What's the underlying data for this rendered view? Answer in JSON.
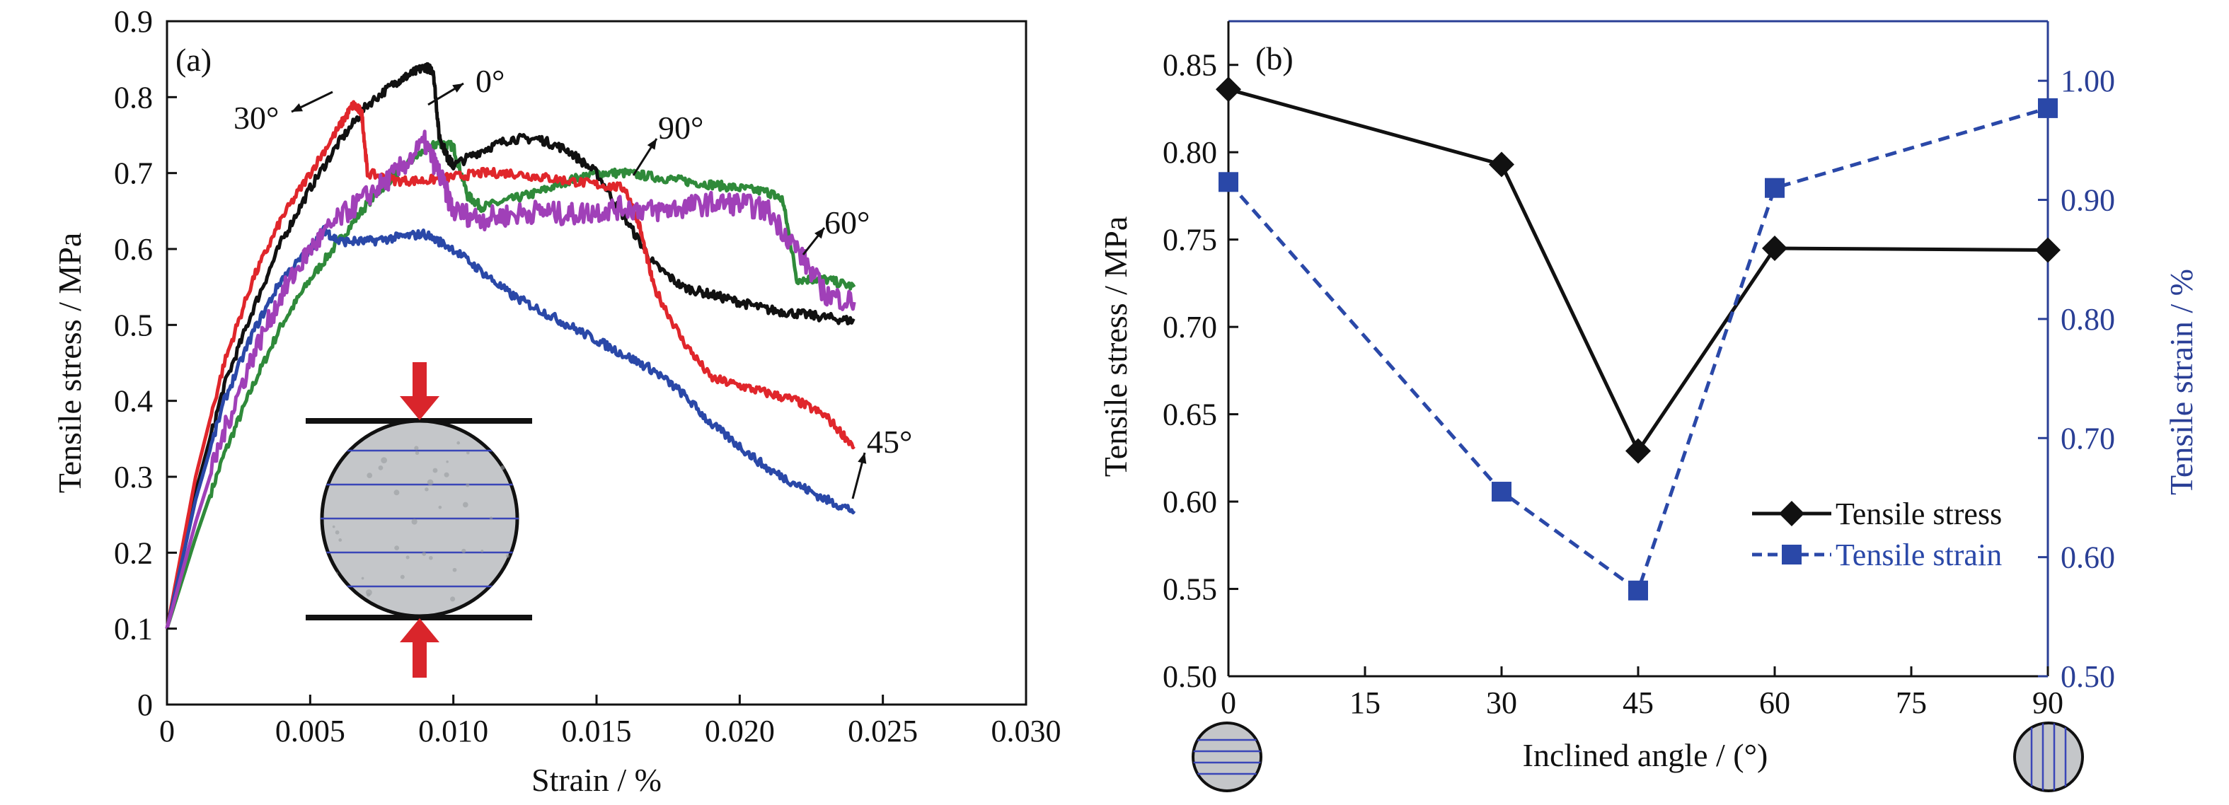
{
  "chart_data": [
    {
      "panel": "(a)",
      "type": "line",
      "xlabel": "Strain / %",
      "ylabel": "Tensile stress / MPa",
      "xlim": [
        0,
        0.03
      ],
      "ylim": [
        0,
        0.9
      ],
      "xticks": [
        "0",
        "0.005",
        "0.010",
        "0.015",
        "0.020",
        "0.025",
        "0.030"
      ],
      "xtick_values": [
        0,
        0.005,
        0.01,
        0.015,
        0.02,
        0.025,
        0.03
      ],
      "yticks": [
        "0",
        "0.1",
        "0.2",
        "0.3",
        "0.4",
        "0.5",
        "0.6",
        "0.7",
        "0.8",
        "0.9"
      ],
      "ytick_values": [
        0,
        0.1,
        0.2,
        0.3,
        0.4,
        0.5,
        0.6,
        0.7,
        0.8,
        0.9
      ],
      "grid": false,
      "series": [
        {
          "name": "0°",
          "color": "#111111",
          "x": [
            0,
            0.001,
            0.002,
            0.003,
            0.004,
            0.005,
            0.006,
            0.007,
            0.008,
            0.0085,
            0.009,
            0.0093,
            0.0095,
            0.0098,
            0.01,
            0.011,
            0.012,
            0.013,
            0.014,
            0.015,
            0.016,
            0.017,
            0.018,
            0.019,
            0.02,
            0.021,
            0.022,
            0.023,
            0.024
          ],
          "y": [
            0.1,
            0.28,
            0.42,
            0.52,
            0.61,
            0.68,
            0.74,
            0.79,
            0.82,
            0.83,
            0.84,
            0.835,
            0.75,
            0.72,
            0.71,
            0.73,
            0.745,
            0.745,
            0.73,
            0.7,
            0.64,
            0.58,
            0.55,
            0.54,
            0.53,
            0.52,
            0.515,
            0.51,
            0.505
          ]
        },
        {
          "name": "30°",
          "color": "#e0262b",
          "x": [
            0,
            0.001,
            0.002,
            0.003,
            0.004,
            0.005,
            0.006,
            0.0065,
            0.0068,
            0.007,
            0.008,
            0.009,
            0.01,
            0.011,
            0.012,
            0.013,
            0.014,
            0.015,
            0.016,
            0.0165,
            0.017,
            0.018,
            0.019,
            0.02,
            0.021,
            0.022,
            0.023,
            0.024
          ],
          "y": [
            0.1,
            0.3,
            0.45,
            0.56,
            0.64,
            0.7,
            0.76,
            0.79,
            0.78,
            0.7,
            0.69,
            0.69,
            0.695,
            0.7,
            0.7,
            0.695,
            0.69,
            0.685,
            0.68,
            0.63,
            0.55,
            0.48,
            0.43,
            0.42,
            0.41,
            0.4,
            0.38,
            0.34
          ]
        },
        {
          "name": "45°",
          "color": "#2a48a8",
          "x": [
            0,
            0.001,
            0.002,
            0.003,
            0.004,
            0.005,
            0.0055,
            0.006,
            0.007,
            0.008,
            0.009,
            0.01,
            0.011,
            0.012,
            0.013,
            0.014,
            0.015,
            0.016,
            0.017,
            0.018,
            0.019,
            0.02,
            0.021,
            0.022,
            0.023,
            0.024
          ],
          "y": [
            0.1,
            0.27,
            0.4,
            0.49,
            0.56,
            0.6,
            0.625,
            0.61,
            0.61,
            0.615,
            0.62,
            0.6,
            0.57,
            0.54,
            0.52,
            0.5,
            0.48,
            0.46,
            0.44,
            0.41,
            0.37,
            0.34,
            0.31,
            0.29,
            0.27,
            0.255
          ]
        },
        {
          "name": "60°",
          "color": "#2f8a3a",
          "x": [
            0,
            0.001,
            0.002,
            0.003,
            0.004,
            0.005,
            0.006,
            0.007,
            0.008,
            0.009,
            0.0095,
            0.01,
            0.0105,
            0.011,
            0.012,
            0.013,
            0.014,
            0.015,
            0.016,
            0.017,
            0.018,
            0.019,
            0.02,
            0.021,
            0.0215,
            0.022,
            0.023,
            0.024
          ],
          "y": [
            0.1,
            0.22,
            0.33,
            0.42,
            0.5,
            0.56,
            0.61,
            0.66,
            0.7,
            0.73,
            0.74,
            0.735,
            0.67,
            0.655,
            0.665,
            0.675,
            0.69,
            0.7,
            0.7,
            0.695,
            0.69,
            0.685,
            0.68,
            0.675,
            0.665,
            0.56,
            0.56,
            0.55
          ]
        },
        {
          "name": "90°",
          "color": "#a040b8",
          "x": [
            0,
            0.001,
            0.002,
            0.003,
            0.004,
            0.005,
            0.006,
            0.007,
            0.008,
            0.009,
            0.0095,
            0.01,
            0.011,
            0.012,
            0.013,
            0.014,
            0.015,
            0.016,
            0.017,
            0.018,
            0.019,
            0.02,
            0.021,
            0.022,
            0.023,
            0.024
          ],
          "y": [
            0.1,
            0.24,
            0.36,
            0.46,
            0.54,
            0.6,
            0.64,
            0.67,
            0.7,
            0.74,
            0.7,
            0.65,
            0.64,
            0.645,
            0.65,
            0.645,
            0.65,
            0.655,
            0.65,
            0.655,
            0.66,
            0.66,
            0.65,
            0.6,
            0.54,
            0.53
          ]
        }
      ],
      "annotations": [
        {
          "text": "0°",
          "series": "0°"
        },
        {
          "text": "30°",
          "series": "30°"
        },
        {
          "text": "90°",
          "series": "90°"
        },
        {
          "text": "60°",
          "series": "60°"
        },
        {
          "text": "45°",
          "series": "45°"
        }
      ]
    },
    {
      "panel": "(b)",
      "type": "line",
      "xlabel": "Inclined angle / (°)",
      "ylabel": "Tensile stress / MPa",
      "y2label": "Tensile strain / %",
      "x": [
        0,
        30,
        45,
        60,
        90
      ],
      "xlim": [
        0,
        90
      ],
      "ylim": [
        0.5,
        0.875
      ],
      "y2lim": [
        0.5,
        1.05
      ],
      "xticks": [
        "0",
        "15",
        "30",
        "45",
        "60",
        "75",
        "90"
      ],
      "xtick_values": [
        0,
        15,
        30,
        45,
        60,
        75,
        90
      ],
      "yticks": [
        "0.50",
        "0.55",
        "0.60",
        "0.65",
        "0.70",
        "0.75",
        "0.80",
        "0.85"
      ],
      "ytick_values": [
        0.5,
        0.55,
        0.6,
        0.65,
        0.7,
        0.75,
        0.8,
        0.85
      ],
      "y2ticks": [
        "0.50",
        "0.60",
        "0.70",
        "0.80",
        "0.90",
        "1.00"
      ],
      "y2tick_values": [
        0.5,
        0.6,
        0.7,
        0.8,
        0.9,
        1.0
      ],
      "grid": false,
      "legend_position": "right",
      "series": [
        {
          "name": "Tensile stress",
          "axis": "left",
          "color": "#111111",
          "marker": "diamond",
          "style": "solid",
          "values": [
            0.836,
            0.793,
            0.629,
            0.745,
            0.744
          ]
        },
        {
          "name": "Tensile strain",
          "axis": "right",
          "color": "#2a48a8",
          "marker": "square",
          "style": "dashed",
          "values": [
            0.915,
            0.655,
            0.572,
            0.91,
            0.977
          ]
        }
      ],
      "y2_axis_color": "#2a3f96"
    }
  ],
  "inset_a": {
    "load_arrow_color": "#d9252b",
    "disc_fill": "#c4c6c9",
    "layer_line_color": "#3a46b8"
  }
}
